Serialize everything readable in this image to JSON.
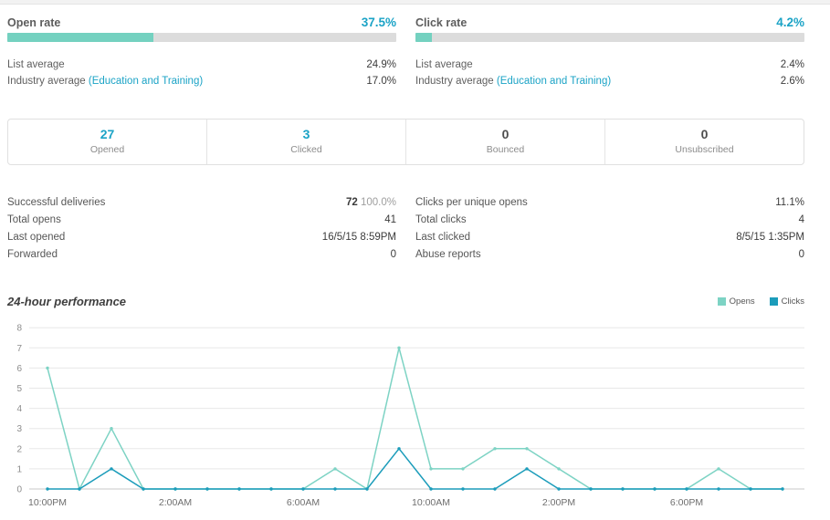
{
  "colors": {
    "accent_teal_blue": "#1ba3c6",
    "bar_fill_teal": "#74d1c0",
    "bar_track_gray": "#dcdcdc",
    "opens_line": "#7dd3c4",
    "clicks_line": "#1b9cba"
  },
  "rates": {
    "open": {
      "label": "Open rate",
      "value": "37.5%",
      "pct": 37.5,
      "list_average_label": "List average",
      "list_average_value": "24.9%",
      "industry_label": "Industry average",
      "industry_link": "(Education and Training)",
      "industry_value": "17.0%"
    },
    "click": {
      "label": "Click rate",
      "value": "4.2%",
      "pct": 4.2,
      "list_average_label": "List average",
      "list_average_value": "2.4%",
      "industry_label": "Industry average",
      "industry_link": "(Education and Training)",
      "industry_value": "2.6%"
    }
  },
  "stat_boxes": [
    {
      "value": "27",
      "label": "Opened"
    },
    {
      "value": "3",
      "label": "Clicked"
    },
    {
      "value": "0",
      "label": "Bounced"
    },
    {
      "value": "0",
      "label": "Unsubscribed"
    }
  ],
  "stats_left": [
    {
      "label": "Successful deliveries",
      "value": "72",
      "suffix": "100.0%"
    },
    {
      "label": "Total opens",
      "value": "41"
    },
    {
      "label": "Last opened",
      "value": "16/5/15 8:59PM"
    },
    {
      "label": "Forwarded",
      "value": "0"
    }
  ],
  "stats_right": [
    {
      "label": "Clicks per unique opens",
      "value": "11.1%"
    },
    {
      "label": "Total clicks",
      "value": "4"
    },
    {
      "label": "Last clicked",
      "value": "8/5/15 1:35PM"
    },
    {
      "label": "Abuse reports",
      "value": "0"
    }
  ],
  "chart": {
    "title": "24-hour performance",
    "legend": [
      {
        "label": "Opens",
        "color": "#7dd3c4"
      },
      {
        "label": "Clicks",
        "color": "#1b9cba"
      }
    ]
  },
  "chart_data": {
    "type": "line",
    "title": "24-hour performance",
    "x": [
      "10:00PM",
      "11:00PM",
      "12:00AM",
      "1:00AM",
      "2:00AM",
      "3:00AM",
      "4:00AM",
      "5:00AM",
      "6:00AM",
      "7:00AM",
      "8:00AM",
      "9:00AM",
      "10:00AM",
      "11:00AM",
      "12:00PM",
      "1:00PM",
      "2:00PM",
      "3:00PM",
      "4:00PM",
      "5:00PM",
      "6:00PM",
      "7:00PM",
      "8:00PM",
      "9:00PM"
    ],
    "x_tick_indices": [
      0,
      4,
      8,
      12,
      16,
      20
    ],
    "y_ticks": [
      0,
      1,
      2,
      3,
      4,
      5,
      6,
      7,
      8
    ],
    "ylim": [
      0,
      8
    ],
    "grid": true,
    "legend_position": "top-right",
    "series": [
      {
        "name": "Opens",
        "color": "#7dd3c4",
        "values": [
          6,
          0,
          3,
          0,
          0,
          0,
          0,
          0,
          0,
          1,
          0,
          7,
          1,
          1,
          2,
          2,
          1,
          0,
          0,
          0,
          0,
          1,
          0,
          0
        ]
      },
      {
        "name": "Clicks",
        "color": "#1b9cba",
        "values": [
          0,
          0,
          1,
          0,
          0,
          0,
          0,
          0,
          0,
          0,
          0,
          2,
          0,
          0,
          0,
          1,
          0,
          0,
          0,
          0,
          0,
          0,
          0,
          0
        ]
      }
    ]
  }
}
